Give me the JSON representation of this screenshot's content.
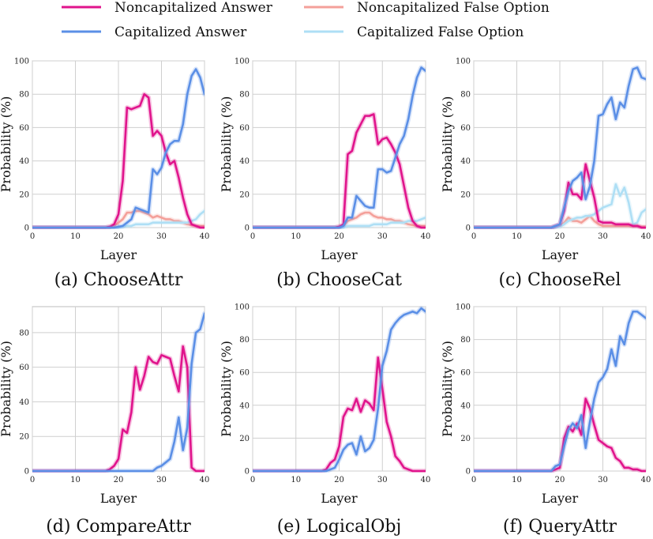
{
  "legend": [
    {
      "label": "Noncapitalized Answer",
      "color": "#e0148c"
    },
    {
      "label": "Capitalized Answer",
      "color": "#5b8fe6"
    },
    {
      "label": "Noncapitalized False Option",
      "color": "#f4a09a"
    },
    {
      "label": "Capitalized False Option",
      "color": "#aedff5"
    }
  ],
  "chart_data": [
    {
      "type": "line",
      "caption": "(a) ChooseAttr",
      "xlabel": "Layer",
      "ylabel": "Probability (%)",
      "xlim": [
        0,
        40
      ],
      "ylim": [
        0,
        100
      ],
      "xticks": [
        "0",
        "10",
        "20",
        "30",
        "40"
      ],
      "yticks": [
        "0",
        "20",
        "40",
        "60",
        "80",
        "100"
      ],
      "x": [
        0,
        1,
        2,
        3,
        4,
        5,
        6,
        7,
        8,
        9,
        10,
        11,
        12,
        13,
        14,
        15,
        16,
        17,
        18,
        19,
        20,
        21,
        22,
        23,
        24,
        25,
        26,
        27,
        28,
        29,
        30,
        31,
        32,
        33,
        34,
        35,
        36,
        37,
        38,
        39,
        40
      ],
      "series": [
        {
          "name": "Noncapitalized Answer",
          "color": "#e0148c",
          "values": [
            0,
            0,
            0,
            0,
            0,
            0,
            0,
            0,
            0,
            0,
            0,
            0,
            0,
            0,
            0,
            0,
            0,
            0,
            0.5,
            2,
            8,
            28,
            72,
            71,
            72,
            73,
            80,
            78,
            55,
            58,
            55,
            45,
            38,
            40,
            30,
            18,
            8,
            2,
            1,
            0,
            0
          ]
        },
        {
          "name": "Capitalized Answer",
          "color": "#5b8fe6",
          "values": [
            0,
            0,
            0,
            0,
            0,
            0,
            0,
            0,
            0,
            0,
            0,
            0,
            0,
            0,
            0,
            0,
            0,
            0,
            0,
            0,
            0.5,
            1,
            3,
            5,
            12,
            11,
            10,
            9,
            35,
            32,
            36,
            45,
            50,
            52,
            52,
            62,
            80,
            91,
            95,
            90,
            80
          ]
        },
        {
          "name": "Noncapitalized False Option",
          "color": "#f4a09a",
          "values": [
            0,
            0,
            0,
            0,
            0,
            0,
            0,
            0,
            0,
            0,
            0,
            0,
            0,
            0,
            0,
            0,
            0,
            0,
            0.5,
            1,
            3,
            5,
            9,
            9,
            10,
            10,
            9,
            8,
            6,
            7,
            6,
            5,
            5,
            4,
            4,
            3,
            2,
            1.5,
            1,
            1,
            1
          ]
        },
        {
          "name": "Capitalized False Option",
          "color": "#aedff5",
          "values": [
            0,
            0,
            0,
            0,
            0,
            0,
            0,
            0,
            0,
            0,
            0,
            0,
            0,
            0,
            0,
            0,
            0,
            0,
            0,
            0,
            0,
            0.5,
            1,
            1,
            2,
            2,
            2,
            2,
            3,
            3,
            3,
            3,
            3,
            3,
            3,
            3,
            3,
            4,
            5,
            8,
            10
          ]
        }
      ]
    },
    {
      "type": "line",
      "caption": "(b) ChooseCat",
      "xlabel": "Layer",
      "ylabel": "Probability (%)",
      "xlim": [
        0,
        40
      ],
      "ylim": [
        0,
        100
      ],
      "xticks": [
        "0",
        "10",
        "20",
        "30",
        "40"
      ],
      "yticks": [
        "0",
        "20",
        "40",
        "60",
        "80",
        "100"
      ],
      "x": [
        0,
        1,
        2,
        3,
        4,
        5,
        6,
        7,
        8,
        9,
        10,
        11,
        12,
        13,
        14,
        15,
        16,
        17,
        18,
        19,
        20,
        21,
        22,
        23,
        24,
        25,
        26,
        27,
        28,
        29,
        30,
        31,
        32,
        33,
        34,
        35,
        36,
        37,
        38,
        39,
        40
      ],
      "series": [
        {
          "name": "Noncapitalized Answer",
          "color": "#e0148c",
          "values": [
            0,
            0,
            0,
            0,
            0,
            0,
            0,
            0,
            0,
            0,
            0,
            0,
            0,
            0,
            0,
            0,
            0,
            0,
            0,
            0,
            0.5,
            2,
            44,
            46,
            57,
            62,
            67,
            67,
            68,
            50,
            53,
            54,
            50,
            45,
            38,
            25,
            12,
            4,
            1,
            0,
            0
          ]
        },
        {
          "name": "Capitalized Answer",
          "color": "#5b8fe6",
          "values": [
            0,
            0,
            0,
            0,
            0,
            0,
            0,
            0,
            0,
            0,
            0,
            0,
            0,
            0,
            0,
            0,
            0,
            0,
            0,
            0,
            0,
            1,
            6,
            6,
            19,
            16,
            13,
            12,
            12,
            35,
            35,
            33,
            34,
            42,
            50,
            55,
            65,
            79,
            90,
            96,
            94
          ]
        },
        {
          "name": "Noncapitalized False Option",
          "color": "#f4a09a",
          "values": [
            0,
            0,
            0,
            0,
            0,
            0,
            0,
            0,
            0,
            0,
            0,
            0,
            0,
            0,
            0,
            0,
            0,
            0,
            0,
            0,
            0.5,
            1,
            4,
            5,
            6,
            8,
            9,
            9,
            7,
            6,
            6,
            5,
            5,
            4,
            4,
            3,
            2,
            1.5,
            1,
            1,
            1
          ]
        },
        {
          "name": "Capitalized False Option",
          "color": "#aedff5",
          "values": [
            0,
            0,
            0,
            0,
            0,
            0,
            0,
            0,
            0,
            0,
            0,
            0,
            0,
            0,
            0,
            0,
            0,
            0,
            0,
            0,
            0,
            0,
            1,
            1,
            1,
            1,
            1,
            1,
            2,
            2,
            2,
            2,
            3,
            3,
            3,
            3,
            4,
            4,
            4,
            5,
            6
          ]
        }
      ]
    },
    {
      "type": "line",
      "caption": "(c) ChooseRel",
      "xlabel": "Layer",
      "ylabel": "Probability (%)",
      "xlim": [
        0,
        40
      ],
      "ylim": [
        0,
        100
      ],
      "xticks": [
        "0",
        "10",
        "20",
        "30",
        "40"
      ],
      "yticks": [
        "0",
        "20",
        "40",
        "60",
        "80",
        "100"
      ],
      "x": [
        0,
        1,
        2,
        3,
        4,
        5,
        6,
        7,
        8,
        9,
        10,
        11,
        12,
        13,
        14,
        15,
        16,
        17,
        18,
        19,
        20,
        21,
        22,
        23,
        24,
        25,
        26,
        27,
        28,
        29,
        30,
        31,
        32,
        33,
        34,
        35,
        36,
        37,
        38,
        39,
        40
      ],
      "series": [
        {
          "name": "Noncapitalized Answer",
          "color": "#e0148c",
          "values": [
            0,
            0,
            0,
            0,
            0,
            0,
            0,
            0,
            0,
            0,
            0,
            0,
            0,
            0,
            0,
            0,
            0,
            0,
            0,
            1,
            2,
            10,
            27,
            20,
            20,
            17,
            38,
            28,
            18,
            4,
            3,
            3,
            3,
            2,
            2,
            2,
            2,
            1,
            1,
            0,
            0
          ]
        },
        {
          "name": "Capitalized Answer",
          "color": "#5b8fe6",
          "values": [
            0,
            0,
            0,
            0,
            0,
            0,
            0,
            0,
            0,
            0,
            0,
            0,
            0,
            0,
            0,
            0,
            0,
            0,
            0,
            1,
            2,
            12,
            22,
            28,
            30,
            33,
            17,
            25,
            40,
            67,
            68,
            74,
            78,
            65,
            75,
            72,
            85,
            95,
            96,
            90,
            89
          ]
        },
        {
          "name": "Noncapitalized False Option",
          "color": "#f4a09a",
          "values": [
            0,
            0,
            0,
            0,
            0,
            0,
            0,
            0,
            0,
            0,
            0,
            0,
            0,
            0,
            0,
            0,
            0,
            0,
            0,
            0.5,
            1,
            3,
            6,
            4,
            4,
            3,
            5,
            7,
            4,
            2,
            1,
            1,
            1,
            1,
            1,
            1,
            1,
            1,
            1,
            0.5,
            0.5
          ]
        },
        {
          "name": "Capitalized False Option",
          "color": "#aedff5",
          "values": [
            0,
            0,
            0,
            0,
            0,
            0,
            0,
            0,
            0,
            0,
            0,
            0,
            0,
            0,
            0,
            0,
            0,
            0,
            0,
            0,
            0.5,
            2,
            4,
            5,
            6,
            6,
            7,
            7,
            8,
            10,
            12,
            13,
            14,
            26,
            19,
            24,
            15,
            2,
            3,
            9,
            11
          ]
        }
      ]
    },
    {
      "type": "line",
      "caption": "(d) CompareAttr",
      "xlabel": "Layer",
      "ylabel": "Probability (%)",
      "xlim": [
        0,
        40
      ],
      "ylim": [
        0,
        95
      ],
      "xticks": [
        "0",
        "10",
        "20",
        "30",
        "40"
      ],
      "yticks": [
        "0",
        "20",
        "40",
        "60",
        "80"
      ],
      "x": [
        0,
        1,
        2,
        3,
        4,
        5,
        6,
        7,
        8,
        9,
        10,
        11,
        12,
        13,
        14,
        15,
        16,
        17,
        18,
        19,
        20,
        21,
        22,
        23,
        24,
        25,
        26,
        27,
        28,
        29,
        30,
        31,
        32,
        33,
        34,
        35,
        36,
        37,
        38,
        39,
        40
      ],
      "series": [
        {
          "name": "Noncapitalized Answer",
          "color": "#e0148c",
          "values": [
            0,
            0,
            0,
            0,
            0,
            0,
            0,
            0,
            0,
            0,
            0,
            0,
            0,
            0,
            0,
            0,
            0,
            0,
            1,
            3,
            7,
            24,
            22,
            34,
            60,
            47,
            55,
            66,
            63,
            62,
            67,
            66,
            65,
            55,
            46,
            72,
            60,
            2,
            0,
            0,
            0
          ]
        },
        {
          "name": "Capitalized Answer",
          "color": "#5b8fe6",
          "values": [
            0,
            0,
            0,
            0,
            0,
            0,
            0,
            0,
            0,
            0,
            0,
            0,
            0,
            0,
            0,
            0,
            0,
            0,
            0,
            0,
            0,
            0,
            0,
            0,
            0,
            0,
            0,
            0,
            0,
            2,
            3,
            5,
            7,
            17,
            31,
            12,
            25,
            62,
            80,
            82,
            91
          ]
        }
      ]
    },
    {
      "type": "line",
      "caption": "(e) LogicalObj",
      "xlabel": "Layer",
      "ylabel": "Probability (%)",
      "xlim": [
        0,
        40
      ],
      "ylim": [
        0,
        100
      ],
      "xticks": [
        "0",
        "10",
        "20",
        "30",
        "40"
      ],
      "yticks": [
        "0",
        "20",
        "40",
        "60",
        "80",
        "100"
      ],
      "x": [
        0,
        1,
        2,
        3,
        4,
        5,
        6,
        7,
        8,
        9,
        10,
        11,
        12,
        13,
        14,
        15,
        16,
        17,
        18,
        19,
        20,
        21,
        22,
        23,
        24,
        25,
        26,
        27,
        28,
        29,
        30,
        31,
        32,
        33,
        34,
        35,
        36,
        37,
        38,
        39,
        40
      ],
      "series": [
        {
          "name": "Noncapitalized Answer",
          "color": "#e0148c",
          "values": [
            0,
            0,
            0,
            0,
            0,
            0,
            0,
            0,
            0,
            0,
            0,
            0,
            0,
            0,
            0,
            0,
            0,
            1,
            5,
            7,
            15,
            33,
            38,
            37,
            44,
            36,
            43,
            41,
            37,
            69,
            50,
            30,
            21,
            9,
            6,
            2,
            1,
            0,
            0,
            0,
            0
          ]
        },
        {
          "name": "Capitalized Answer",
          "color": "#5b8fe6",
          "values": [
            0,
            0,
            0,
            0,
            0,
            0,
            0,
            0,
            0,
            0,
            0,
            0,
            0,
            0,
            0,
            0,
            0,
            0,
            1,
            2,
            7,
            13,
            16,
            17,
            10,
            21,
            12,
            14,
            19,
            38,
            64,
            73,
            86,
            90,
            93,
            95,
            96,
            97,
            96,
            99,
            97
          ]
        }
      ]
    },
    {
      "type": "line",
      "caption": "(f) QueryAttr",
      "xlabel": "Layer",
      "ylabel": "Probability (%)",
      "xlim": [
        0,
        40
      ],
      "ylim": [
        0,
        100
      ],
      "xticks": [
        "0",
        "10",
        "20",
        "30",
        "40"
      ],
      "yticks": [
        "0",
        "20",
        "40",
        "60",
        "80",
        "100"
      ],
      "x": [
        0,
        1,
        2,
        3,
        4,
        5,
        6,
        7,
        8,
        9,
        10,
        11,
        12,
        13,
        14,
        15,
        16,
        17,
        18,
        19,
        20,
        21,
        22,
        23,
        24,
        25,
        26,
        27,
        28,
        29,
        30,
        31,
        32,
        33,
        34,
        35,
        36,
        37,
        38,
        39,
        40
      ],
      "series": [
        {
          "name": "Noncapitalized Answer",
          "color": "#e0148c",
          "values": [
            0,
            0,
            0,
            0,
            0,
            0,
            0,
            0,
            0,
            0,
            0,
            0,
            0,
            0,
            0,
            0,
            0,
            0,
            0,
            1,
            2,
            20,
            27,
            24,
            29,
            22,
            44,
            38,
            28,
            19,
            17,
            15,
            14,
            8,
            6,
            2,
            2,
            1,
            1,
            0,
            0
          ]
        },
        {
          "name": "Capitalized Answer",
          "color": "#5b8fe6",
          "values": [
            0,
            0,
            0,
            0,
            0,
            0,
            0,
            0,
            0,
            0,
            0,
            0,
            0,
            0,
            0,
            0,
            0,
            0,
            0,
            3,
            4,
            15,
            25,
            29,
            26,
            34,
            14,
            30,
            44,
            54,
            57,
            62,
            74,
            64,
            82,
            77,
            90,
            97,
            97,
            95,
            93
          ]
        }
      ]
    }
  ]
}
